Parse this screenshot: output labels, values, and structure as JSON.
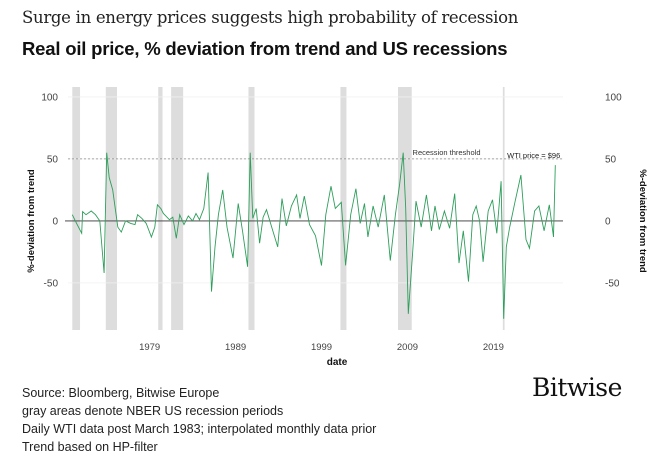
{
  "header": {
    "title": "Surge in energy prices suggests high probability of recession",
    "subtitle": "Real oil price, % deviation from trend and US recessions"
  },
  "chart_data": {
    "type": "line",
    "xlabel": "date",
    "ylabel": "%-deviation from trend",
    "ylabel_right": "%-deviation from trend",
    "xlim": [
      1969.5,
      2027.1
    ],
    "ylim": [
      -88,
      108
    ],
    "xticks": [
      1979,
      1989,
      1999,
      2009,
      2019
    ],
    "yticks": [
      -50,
      0,
      50,
      100
    ],
    "grid": true,
    "line_color": "#2e9e5b",
    "recession_color": "#dddddd",
    "recessions": [
      [
        1970.0,
        1970.9
      ],
      [
        1973.9,
        1975.2
      ],
      [
        1980.0,
        1980.5
      ],
      [
        1981.5,
        1982.9
      ],
      [
        1990.5,
        1991.2
      ],
      [
        2001.2,
        2001.9
      ],
      [
        2007.9,
        2009.5
      ],
      [
        2020.1,
        2020.3
      ]
    ],
    "threshold": {
      "value": 50,
      "label": "Recession threshold"
    },
    "annotation": {
      "label": "WTI price = $96",
      "x": 2026.2,
      "y": 45
    },
    "series": [
      {
        "x": [
          1970.0,
          1970.5,
          1971.1,
          1971.2,
          1971.6,
          1972.2,
          1972.7,
          1973.2,
          1973.7,
          1974.0,
          1974.3,
          1974.7,
          1975.3,
          1975.7,
          1976.2,
          1976.8,
          1977.3,
          1977.6,
          1978.1,
          1978.6,
          1979.2,
          1979.6,
          1979.9,
          1980.3,
          1980.6,
          1981.3,
          1981.7,
          1982.1,
          1982.5,
          1983.0,
          1983.5,
          1984.0,
          1984.4,
          1984.8,
          1985.3,
          1985.8,
          1986.2,
          1986.6,
          1987.0,
          1987.5,
          1988.0,
          1988.7,
          1989.3,
          1989.8,
          1990.4,
          1990.7,
          1991.0,
          1991.4,
          1991.8,
          1992.2,
          1992.6,
          1993.2,
          1993.9,
          1994.4,
          1994.9,
          1995.5,
          1996.1,
          1996.5,
          1997.0,
          1997.6,
          1998.3,
          1999.0,
          1999.5,
          2000.1,
          2000.6,
          2001.3,
          2001.8,
          2002.4,
          2003.0,
          2003.5,
          2004.0,
          2004.4,
          2005.0,
          2005.6,
          2006.3,
          2007.0,
          2007.6,
          2008.1,
          2008.5,
          2008.8,
          2009.1,
          2009.6,
          2010.0,
          2010.6,
          2011.2,
          2011.8,
          2012.2,
          2012.7,
          2013.3,
          2013.9,
          2014.5,
          2015.0,
          2015.5,
          2016.1,
          2016.6,
          2017.0,
          2017.4,
          2017.8,
          2018.4,
          2018.9,
          2019.4,
          2019.9,
          2020.2,
          2020.5,
          2020.9,
          2021.5,
          2022.2,
          2022.8,
          2023.2,
          2023.8,
          2024.3,
          2024.9,
          2025.5,
          2026.0,
          2026.2
        ],
        "y": [
          5,
          -2,
          -10,
          7.5,
          5,
          8,
          5,
          0,
          -42,
          55,
          35,
          25,
          -5,
          -9,
          0,
          -2,
          -3,
          5,
          2,
          -2,
          -13,
          -5,
          13,
          10,
          6,
          1,
          3,
          -14,
          5,
          -3,
          4,
          0,
          6,
          1,
          10,
          39,
          -57,
          -21,
          5,
          25,
          -5,
          -30,
          14,
          -8,
          -37,
          55,
          2,
          10,
          -18,
          3,
          9,
          -5,
          -21,
          18,
          -4,
          12,
          21,
          2,
          20,
          -3,
          -12,
          -36,
          5,
          28,
          10,
          15,
          -36,
          5,
          26,
          -2,
          14,
          -13,
          12,
          -5,
          21,
          -32,
          5,
          30,
          55,
          10,
          -75,
          -26,
          16,
          -5,
          21,
          -8,
          12,
          -7,
          8,
          -6,
          22,
          -34,
          -8,
          -49,
          5,
          12,
          0,
          -33,
          8,
          17,
          -10,
          32,
          -79,
          -21,
          -5,
          15,
          37,
          -15,
          -22,
          8,
          12,
          -8,
          13,
          -13,
          45
        ]
      }
    ]
  },
  "footer": {
    "lines": [
      "Source: Bloomberg, Bitwise Europe",
      "gray areas denote NBER US recession periods",
      "Daily WTI data post March 1983; interpolated monthly data prior",
      "Trend based on HP-filter"
    ]
  },
  "logo": {
    "text": "Bitwise"
  }
}
